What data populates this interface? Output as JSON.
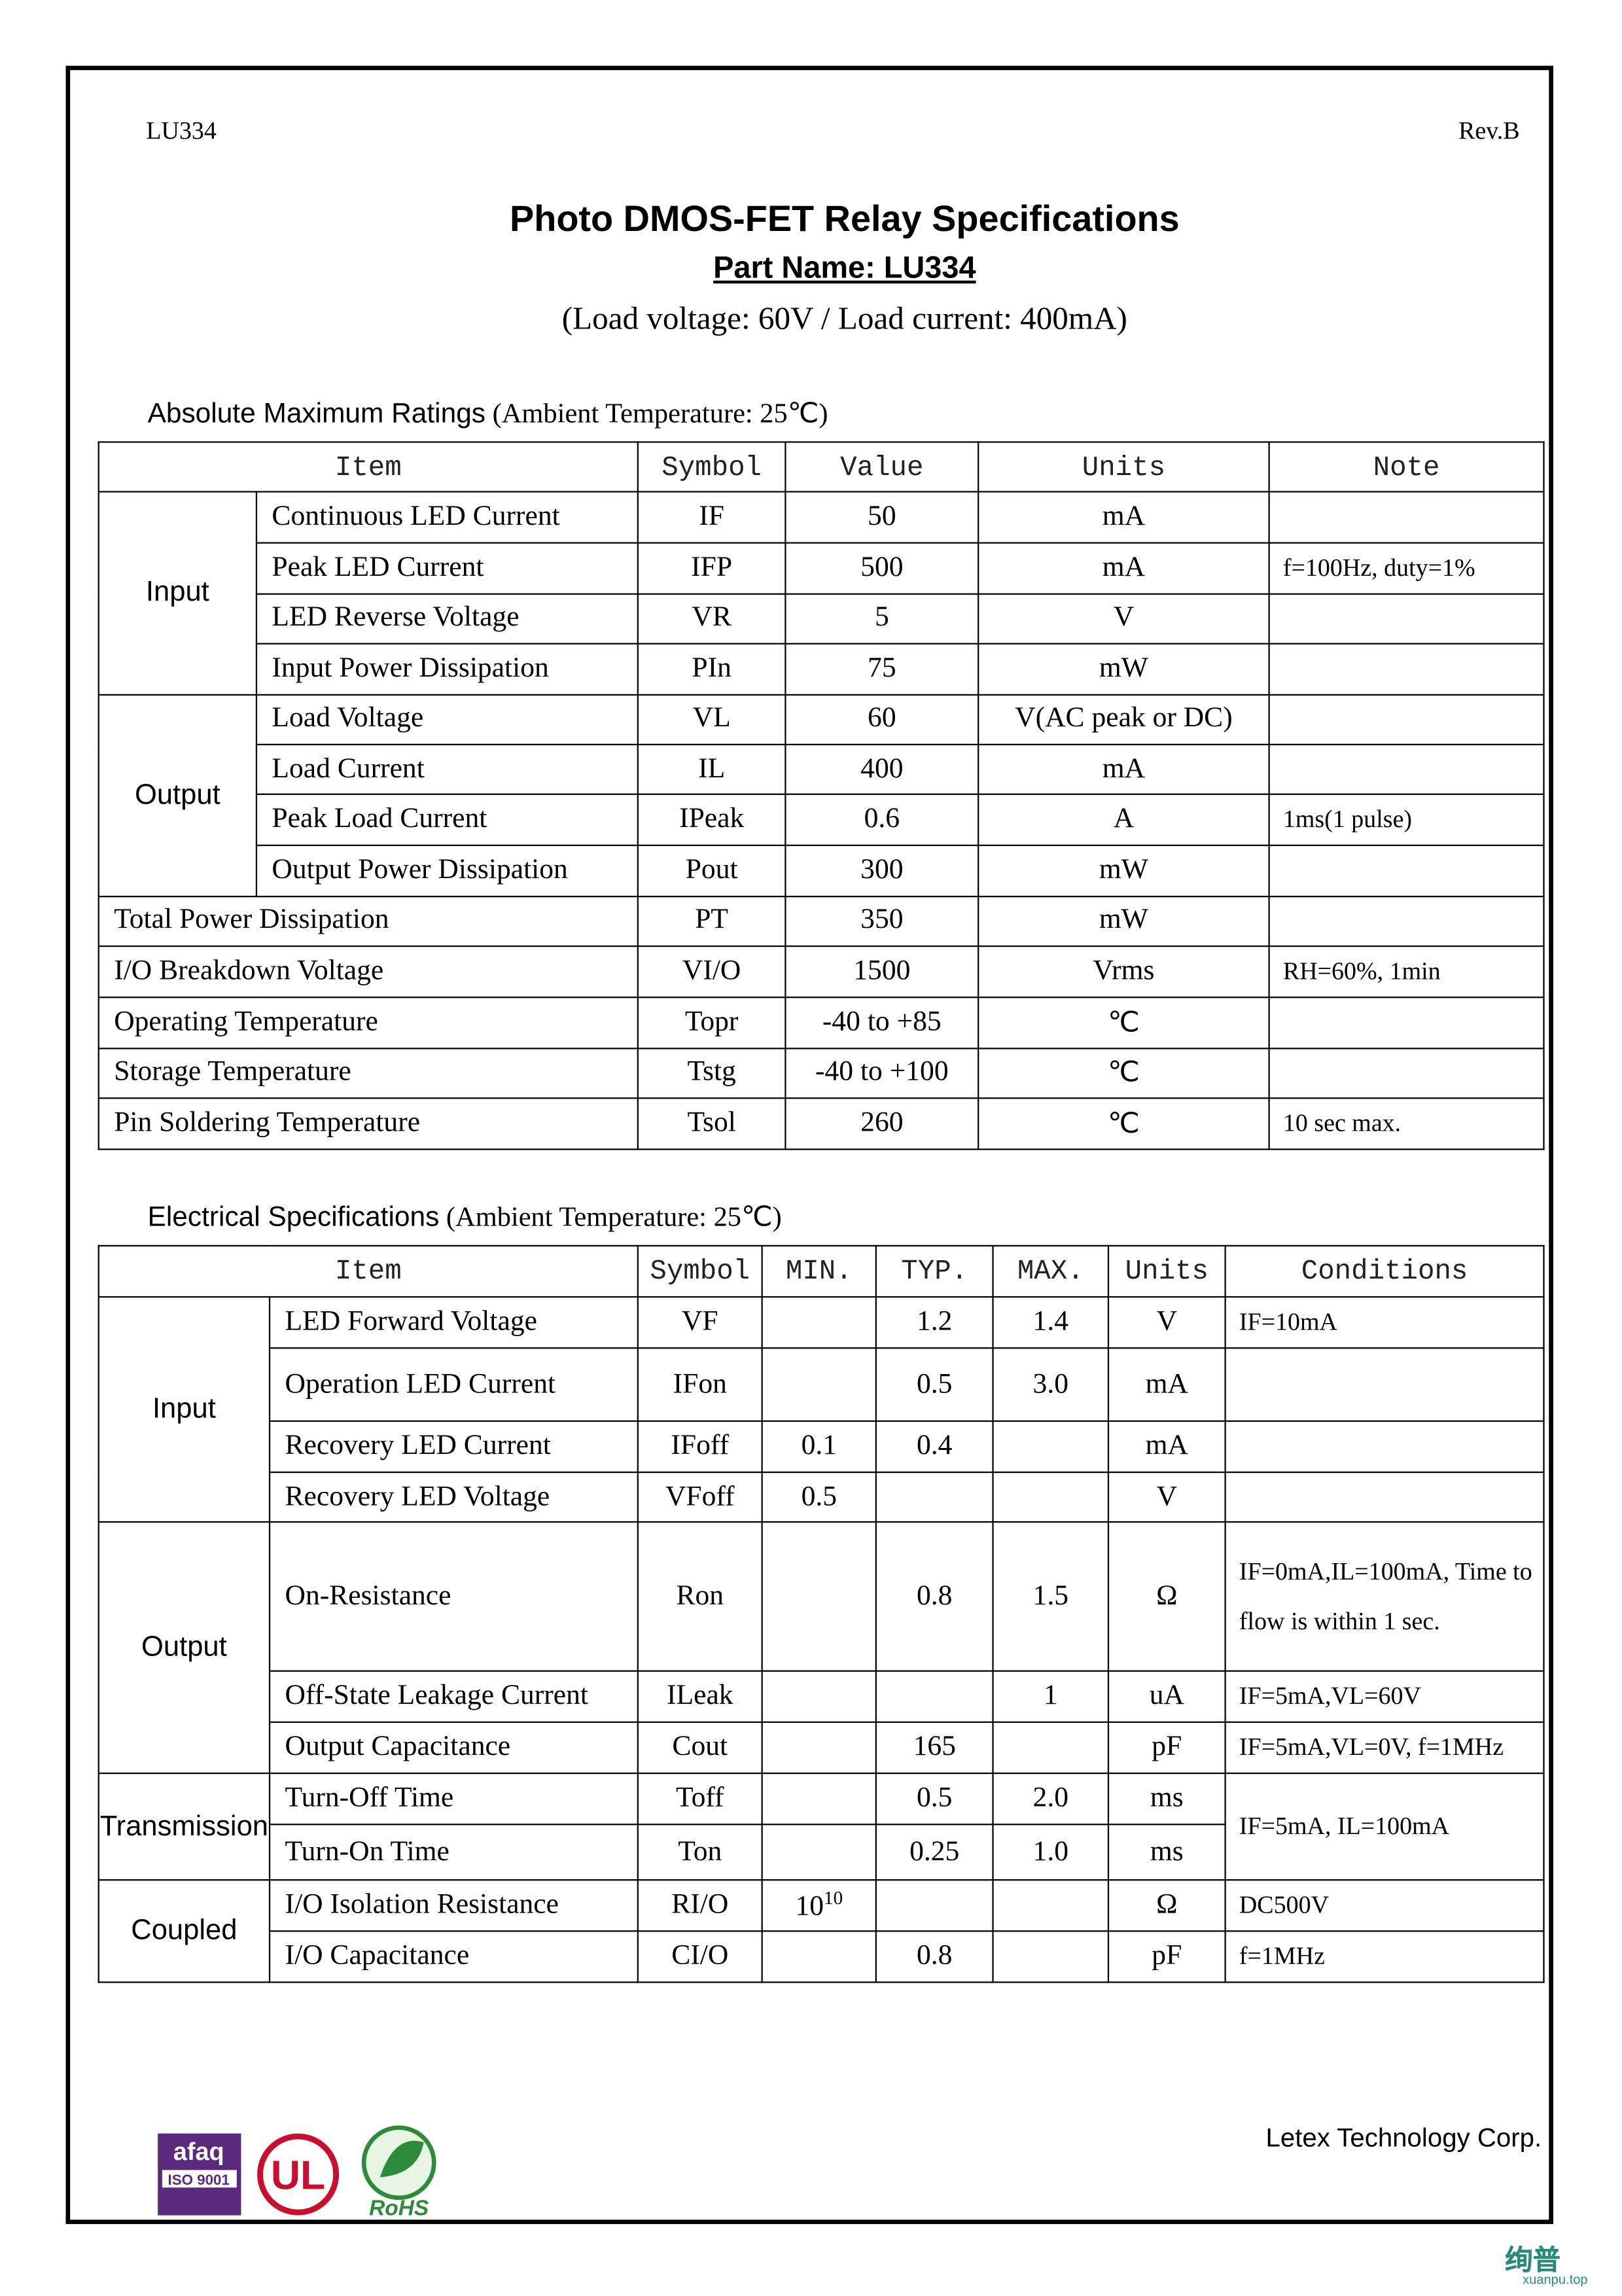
{
  "header": {
    "part_code": "LU334",
    "revision": "Rev.B",
    "title": "Photo DMOS-FET Relay Specifications",
    "part_name": "Part Name: LU334",
    "load_spec": "(Load voltage: 60V / Load current: 400mA)"
  },
  "absolute_ratings": {
    "heading": "Absolute Maximum Ratings",
    "condition": "(Ambient Temperature: 25℃)",
    "columns": [
      "Item",
      "Symbol",
      "Value",
      "Units",
      "Note"
    ],
    "sections": [
      {
        "label": "Input",
        "rows": [
          [
            "Continuous LED Current",
            "IF",
            "50",
            "mA",
            null
          ],
          [
            "Peak LED Current",
            "IFP",
            "500",
            "mA",
            "f=100Hz, duty=1%"
          ],
          [
            "LED Reverse Voltage",
            "VR",
            "5",
            "V",
            null
          ],
          [
            "Input Power Dissipation",
            "PIn",
            "75",
            "mW",
            null
          ]
        ]
      },
      {
        "label": "Output",
        "rows": [
          [
            "Load Voltage",
            "VL",
            "60",
            "V(AC peak or DC)",
            null
          ],
          [
            "Load Current",
            "IL",
            "400",
            "mA",
            null
          ],
          [
            "Peak Load Current",
            "IPeak",
            "0.6",
            "A",
            "1ms(1 pulse)"
          ],
          [
            "Output Power Dissipation",
            "Pout",
            "300",
            "mW",
            null
          ]
        ]
      },
      {
        "rows": [
          [
            "Total Power Dissipation",
            "PT",
            "350",
            "mW",
            null
          ],
          [
            "I/O Breakdown Voltage",
            "VI/O",
            "1500",
            "Vrms",
            "RH=60%, 1min"
          ],
          [
            "Operating Temperature",
            "Topr",
            "-40 to +85",
            "℃",
            null
          ],
          [
            "Storage Temperature",
            "Tstg",
            "-40 to +100",
            "℃",
            null
          ],
          [
            "Pin Soldering Temperature",
            "Tsol",
            "260",
            "℃",
            "10 sec max."
          ]
        ]
      }
    ]
  },
  "electrical_specs": {
    "heading": "Electrical Specifications",
    "condition": "(Ambient Temperature: 25℃)",
    "columns": [
      "Item",
      "Symbol",
      "MIN.",
      "TYP.",
      "MAX.",
      "Units",
      "Conditions"
    ],
    "sections": [
      {
        "label": "Input",
        "rows": [
          [
            "LED Forward Voltage",
            "VF",
            null,
            "1.2",
            "1.4",
            "V",
            "IF=10mA"
          ],
          [
            "Operation LED Current",
            "IFon",
            null,
            "0.5",
            "3.0",
            "mA",
            null
          ],
          [
            "Recovery LED Current",
            "IFoff",
            "0.1",
            "0.4",
            null,
            "mA",
            null
          ],
          [
            "Recovery LED Voltage",
            "VFoff",
            "0.5",
            null,
            null,
            "V",
            null
          ]
        ]
      },
      {
        "label": "Output",
        "rows": [
          [
            "On-Resistance",
            "Ron",
            null,
            "0.8",
            "1.5",
            "Ω",
            "IF=0mA,IL=100mA, Time to flow is within 1 sec."
          ],
          [
            "Off-State Leakage Current",
            "ILeak",
            null,
            null,
            "1",
            "uA",
            "IF=5mA,VL=60V"
          ],
          [
            "Output Capacitance",
            "Cout",
            null,
            "165",
            null,
            "pF",
            "IF=5mA,VL=0V, f=1MHz"
          ]
        ]
      },
      {
        "label": "Transmission",
        "rows": [
          [
            "Turn-Off Time",
            "Toff",
            null,
            "0.5",
            "2.0",
            "ms",
            "IF=5mA, IL=100mA"
          ],
          [
            "Turn-On Time",
            "Ton",
            null,
            "0.25",
            "1.0",
            "ms"
          ]
        ]
      },
      {
        "label": "Coupled",
        "rows": [
          [
            "I/O Isolation Resistance",
            "RI/O",
            {
              "base": "10",
              "exp": "10"
            },
            null,
            null,
            "Ω",
            "DC500V"
          ],
          [
            "I/O Capacitance",
            "CI/O",
            null,
            "0.8",
            null,
            "pF",
            "f=1MHz"
          ]
        ]
      }
    ]
  },
  "footer": {
    "company": "Letex  Technology  Corp.",
    "logos": {
      "afaq": "afaq",
      "iso": "ISO 9001",
      "ul": "UL",
      "rohs": "RoHS"
    }
  },
  "watermark": {
    "brand": "绚普",
    "site": "xuanpu.top"
  }
}
